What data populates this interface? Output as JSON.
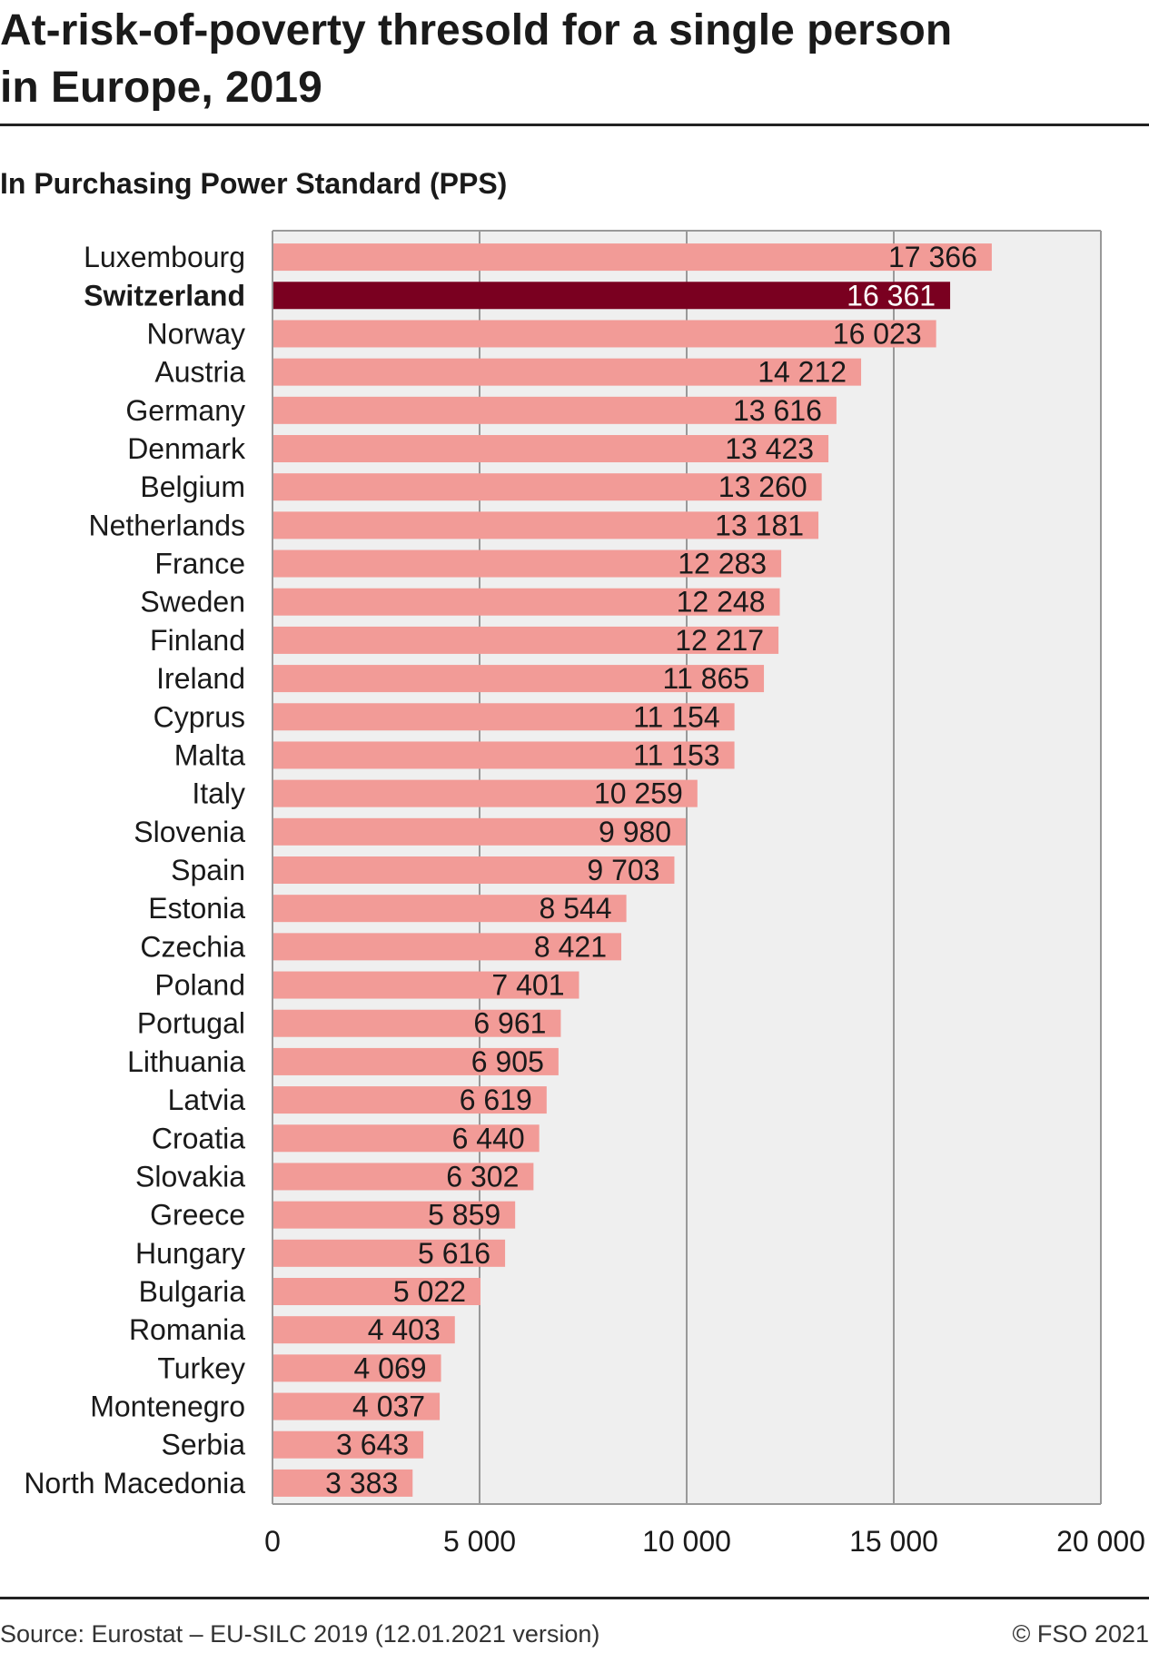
{
  "header": {
    "title": "At-risk-of-poverty thresold for a single person in Europe, 2019",
    "subtitle": "In Purchasing Power Standard (PPS)"
  },
  "footer": {
    "source": "Source: Eurostat – EU-SILC 2019 (12.01.2021 version)",
    "copyright": "© FSO 2021"
  },
  "colors": {
    "bar": "#f29b97",
    "highlight": "#7a0020",
    "plot_background": "#efefef",
    "grid": "#999999",
    "text": "#1a1a1a"
  },
  "chart_data": {
    "type": "bar",
    "orientation": "horizontal",
    "categories": [
      "Luxembourg",
      "Switzerland",
      "Norway",
      "Austria",
      "Germany",
      "Denmark",
      "Belgium",
      "Netherlands",
      "France",
      "Sweden",
      "Finland",
      "Ireland",
      "Cyprus",
      "Malta",
      "Italy",
      "Slovenia",
      "Spain",
      "Estonia",
      "Czechia",
      "Poland",
      "Portugal",
      "Lithuania",
      "Latvia",
      "Croatia",
      "Slovakia",
      "Greece",
      "Hungary",
      "Bulgaria",
      "Romania",
      "Turkey",
      "Montenegro",
      "Serbia",
      "North Macedonia"
    ],
    "values": [
      17366,
      16361,
      16023,
      14212,
      13616,
      13423,
      13260,
      13181,
      12283,
      12248,
      12217,
      11865,
      11154,
      11153,
      10259,
      9980,
      9703,
      8544,
      8421,
      7401,
      6961,
      6905,
      6619,
      6440,
      6302,
      5859,
      5616,
      5022,
      4403,
      4069,
      4037,
      3643,
      3383
    ],
    "value_labels": [
      "17 366",
      "16 361",
      "16 023",
      "14 212",
      "13 616",
      "13 423",
      "13 260",
      "13 181",
      "12 283",
      "12 248",
      "12 217",
      "11 865",
      "11 154",
      "11 153",
      "10 259",
      "9 980",
      "9 703",
      "8 544",
      "8 421",
      "7 401",
      "6 961",
      "6 905",
      "6 619",
      "6 440",
      "6 302",
      "5 859",
      "5 616",
      "5 022",
      "4 403",
      "4 069",
      "4 037",
      "3 643",
      "3 383"
    ],
    "highlight": "Switzerland",
    "xlim": [
      0,
      20000
    ],
    "xticks": [
      0,
      5000,
      10000,
      15000,
      20000
    ],
    "xtick_labels": [
      "0",
      "5 000",
      "10 000",
      "15 000",
      "20 000"
    ],
    "grid": true
  }
}
